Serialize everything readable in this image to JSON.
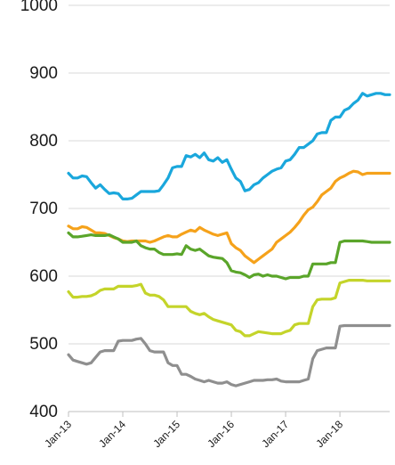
{
  "chart_data": {
    "type": "line",
    "title": "",
    "xlabel": "",
    "ylabel": "",
    "ylim": [
      400,
      1000
    ],
    "yticks": [
      "400",
      "500",
      "600",
      "700",
      "800",
      "900",
      "1000"
    ],
    "xlim": [
      0,
      71
    ],
    "xticks": [
      {
        "label": "Jan-13",
        "x": 0
      },
      {
        "label": "Jan-14",
        "x": 12
      },
      {
        "label": "Jan-15",
        "x": 24
      },
      {
        "label": "Jan-16",
        "x": 36
      },
      {
        "label": "Jan-17",
        "x": 48
      },
      {
        "label": "Jan-18",
        "x": 60
      }
    ],
    "grid": "horizontal",
    "legend": "none",
    "series": [
      {
        "color": "#1aa7dc",
        "values": [
          752,
          745,
          745,
          748,
          747,
          738,
          730,
          735,
          728,
          722,
          723,
          722,
          714,
          714,
          715,
          720,
          725,
          725,
          725,
          725,
          726,
          735,
          745,
          760,
          762,
          762,
          778,
          776,
          780,
          775,
          782,
          772,
          770,
          775,
          768,
          772,
          758,
          745,
          740,
          726,
          728,
          735,
          738,
          745,
          750,
          755,
          758,
          760,
          770,
          772,
          780,
          790,
          790,
          795,
          800,
          810,
          812,
          812,
          830,
          835,
          835,
          845,
          848,
          855,
          860,
          870,
          866,
          868,
          870,
          870,
          868,
          868
        ]
      },
      {
        "color": "#f5a21b",
        "values": [
          674,
          670,
          670,
          673,
          672,
          668,
          664,
          664,
          663,
          660,
          657,
          655,
          652,
          651,
          652,
          652,
          652,
          652,
          650,
          652,
          655,
          658,
          660,
          658,
          658,
          662,
          665,
          668,
          666,
          672,
          668,
          665,
          662,
          660,
          662,
          664,
          648,
          642,
          638,
          630,
          625,
          620,
          625,
          630,
          635,
          640,
          650,
          655,
          660,
          665,
          672,
          680,
          690,
          698,
          702,
          710,
          720,
          725,
          730,
          740,
          745,
          748,
          752,
          755,
          754,
          750,
          752,
          752,
          752,
          752,
          752,
          752
        ]
      },
      {
        "color": "#5aa52a",
        "values": [
          664,
          658,
          658,
          659,
          660,
          661,
          660,
          660,
          660,
          661,
          658,
          655,
          650,
          650,
          650,
          652,
          645,
          642,
          640,
          640,
          635,
          632,
          632,
          632,
          633,
          632,
          645,
          640,
          638,
          640,
          635,
          630,
          628,
          627,
          626,
          620,
          608,
          606,
          605,
          602,
          598,
          602,
          603,
          600,
          602,
          600,
          600,
          598,
          596,
          598,
          598,
          598,
          600,
          600,
          618,
          618,
          618,
          618,
          620,
          620,
          650,
          652,
          652,
          652,
          652,
          652,
          651,
          650,
          650,
          650,
          650,
          650
        ]
      },
      {
        "color": "#c4d42a",
        "values": [
          577,
          569,
          569,
          570,
          570,
          571,
          574,
          579,
          581,
          581,
          581,
          585,
          585,
          585,
          585,
          586,
          588,
          575,
          572,
          572,
          570,
          565,
          555,
          555,
          555,
          555,
          555,
          548,
          545,
          543,
          545,
          540,
          536,
          534,
          532,
          530,
          528,
          520,
          518,
          512,
          512,
          515,
          518,
          517,
          516,
          515,
          515,
          515,
          518,
          520,
          528,
          530,
          530,
          530,
          555,
          565,
          566,
          566,
          566,
          568,
          590,
          592,
          594,
          594,
          594,
          594,
          593,
          593,
          593,
          593,
          593,
          593
        ]
      },
      {
        "color": "#8f8f8f",
        "values": [
          484,
          476,
          474,
          472,
          470,
          472,
          480,
          488,
          490,
          490,
          490,
          504,
          505,
          505,
          505,
          507,
          508,
          500,
          490,
          488,
          488,
          488,
          472,
          468,
          468,
          455,
          455,
          452,
          448,
          446,
          444,
          446,
          444,
          442,
          442,
          444,
          440,
          438,
          440,
          442,
          444,
          446,
          446,
          446,
          447,
          447,
          448,
          445,
          444,
          444,
          444,
          444,
          446,
          448,
          478,
          490,
          492,
          494,
          494,
          494,
          526,
          527,
          527,
          527,
          527,
          527,
          527,
          527,
          527,
          527,
          527,
          527
        ]
      }
    ]
  }
}
